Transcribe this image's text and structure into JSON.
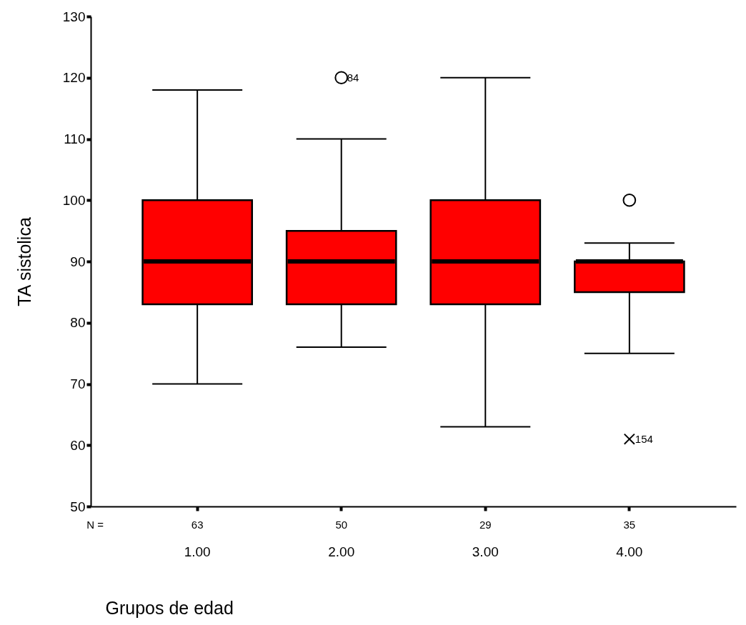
{
  "chart_data": {
    "type": "box",
    "xlabel": "Grupos de edad",
    "ylabel": "TA sistolica",
    "categories": [
      "1.00",
      "2.00",
      "3.00",
      "4.00"
    ],
    "ylim": [
      50,
      130
    ],
    "yticks": [
      50,
      60,
      70,
      80,
      90,
      100,
      110,
      120,
      130
    ],
    "grid": false,
    "series": [
      {
        "type": "box",
        "color": "#ff0000",
        "boxes": [
          {
            "low": 70,
            "q1": 83,
            "median": 90,
            "q3": 100,
            "high": 118
          },
          {
            "low": 76,
            "q1": 83,
            "median": 90,
            "q3": 95,
            "high": 110
          },
          {
            "low": 63,
            "q1": 83,
            "median": 90,
            "q3": 100,
            "high": 120
          },
          {
            "low": 75,
            "q1": 85,
            "median": 90,
            "q3": 90,
            "high": 93
          }
        ]
      },
      {
        "type": "scatter",
        "marker": "circle",
        "color": "#000000",
        "x": [
          "2.00",
          "4.00"
        ],
        "values": [
          120,
          100
        ]
      },
      {
        "type": "scatter",
        "marker": "cross",
        "color": "#000000",
        "x": [
          "4.00"
        ],
        "values": [
          61
        ]
      }
    ],
    "annotations": [
      "N =",
      {
        "text": "63",
        "x": "1.00"
      },
      {
        "text": "50",
        "x": "2.00"
      },
      {
        "text": "29",
        "x": "3.00"
      },
      {
        "text": "35",
        "x": "4.00"
      },
      {
        "text": "84",
        "x": "2.00",
        "y": 120
      },
      {
        "text": "154",
        "x": "4.00",
        "y": 61
      }
    ]
  }
}
